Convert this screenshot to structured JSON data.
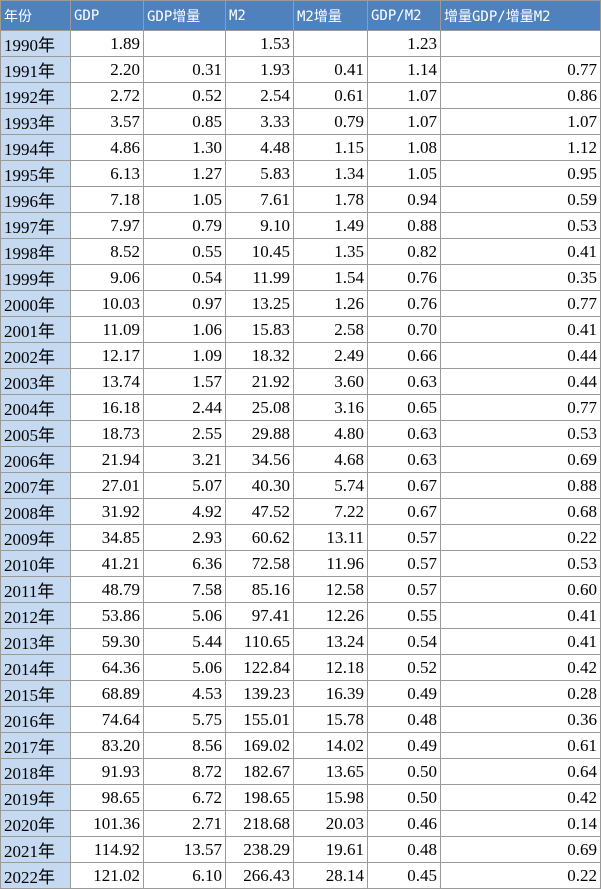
{
  "table": {
    "header": [
      "年份",
      "GDP",
      "GDP增量",
      "M2",
      "M2增量",
      "GDP/M2",
      "增量GDP/增量M2"
    ],
    "rows": [
      [
        "1990年",
        "1.89",
        null,
        "1.53",
        null,
        "1.23",
        null
      ],
      [
        "1991年",
        "2.20",
        "0.31",
        "1.93",
        "0.41",
        "1.14",
        "0.77"
      ],
      [
        "1992年",
        "2.72",
        "0.52",
        "2.54",
        "0.61",
        "1.07",
        "0.86"
      ],
      [
        "1993年",
        "3.57",
        "0.85",
        "3.33",
        "0.79",
        "1.07",
        "1.07"
      ],
      [
        "1994年",
        "4.86",
        "1.30",
        "4.48",
        "1.15",
        "1.08",
        "1.12"
      ],
      [
        "1995年",
        "6.13",
        "1.27",
        "5.83",
        "1.34",
        "1.05",
        "0.95"
      ],
      [
        "1996年",
        "7.18",
        "1.05",
        "7.61",
        "1.78",
        "0.94",
        "0.59"
      ],
      [
        "1997年",
        "7.97",
        "0.79",
        "9.10",
        "1.49",
        "0.88",
        "0.53"
      ],
      [
        "1998年",
        "8.52",
        "0.55",
        "10.45",
        "1.35",
        "0.82",
        "0.41"
      ],
      [
        "1999年",
        "9.06",
        "0.54",
        "11.99",
        "1.54",
        "0.76",
        "0.35"
      ],
      [
        "2000年",
        "10.03",
        "0.97",
        "13.25",
        "1.26",
        "0.76",
        "0.77"
      ],
      [
        "2001年",
        "11.09",
        "1.06",
        "15.83",
        "2.58",
        "0.70",
        "0.41"
      ],
      [
        "2002年",
        "12.17",
        "1.09",
        "18.32",
        "2.49",
        "0.66",
        "0.44"
      ],
      [
        "2003年",
        "13.74",
        "1.57",
        "21.92",
        "3.60",
        "0.63",
        "0.44"
      ],
      [
        "2004年",
        "16.18",
        "2.44",
        "25.08",
        "3.16",
        "0.65",
        "0.77"
      ],
      [
        "2005年",
        "18.73",
        "2.55",
        "29.88",
        "4.80",
        "0.63",
        "0.53"
      ],
      [
        "2006年",
        "21.94",
        "3.21",
        "34.56",
        "4.68",
        "0.63",
        "0.69"
      ],
      [
        "2007年",
        "27.01",
        "5.07",
        "40.30",
        "5.74",
        "0.67",
        "0.88"
      ],
      [
        "2008年",
        "31.92",
        "4.92",
        "47.52",
        "7.22",
        "0.67",
        "0.68"
      ],
      [
        "2009年",
        "34.85",
        "2.93",
        "60.62",
        "13.11",
        "0.57",
        "0.22"
      ],
      [
        "2010年",
        "41.21",
        "6.36",
        "72.58",
        "11.96",
        "0.57",
        "0.53"
      ],
      [
        "2011年",
        "48.79",
        "7.58",
        "85.16",
        "12.58",
        "0.57",
        "0.60"
      ],
      [
        "2012年",
        "53.86",
        "5.06",
        "97.41",
        "12.26",
        "0.55",
        "0.41"
      ],
      [
        "2013年",
        "59.30",
        "5.44",
        "110.65",
        "13.24",
        "0.54",
        "0.41"
      ],
      [
        "2014年",
        "64.36",
        "5.06",
        "122.84",
        "12.18",
        "0.52",
        "0.42"
      ],
      [
        "2015年",
        "68.89",
        "4.53",
        "139.23",
        "16.39",
        "0.49",
        "0.28"
      ],
      [
        "2016年",
        "74.64",
        "5.75",
        "155.01",
        "15.78",
        "0.48",
        "0.36"
      ],
      [
        "2017年",
        "83.20",
        "8.56",
        "169.02",
        "14.02",
        "0.49",
        "0.61"
      ],
      [
        "2018年",
        "91.93",
        "8.72",
        "182.67",
        "13.65",
        "0.50",
        "0.64"
      ],
      [
        "2019年",
        "98.65",
        "6.72",
        "198.65",
        "15.98",
        "0.50",
        "0.42"
      ],
      [
        "2020年",
        "101.36",
        "2.71",
        "218.68",
        "20.03",
        "0.46",
        "0.14"
      ],
      [
        "2021年",
        "114.92",
        "13.57",
        "238.29",
        "19.61",
        "0.48",
        "0.69"
      ],
      [
        "2022年",
        "121.02",
        "6.10",
        "266.43",
        "28.14",
        "0.45",
        "0.22"
      ]
    ]
  }
}
